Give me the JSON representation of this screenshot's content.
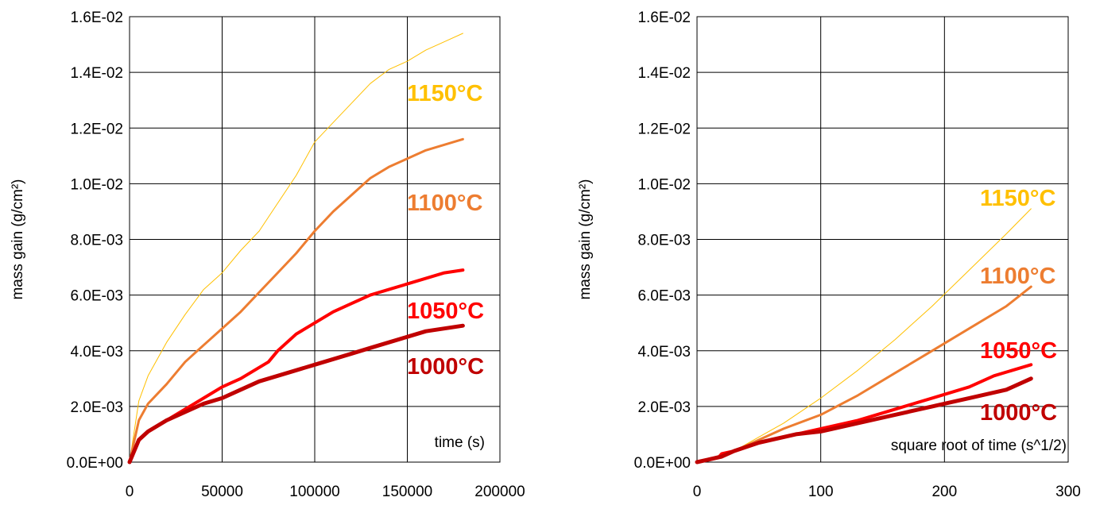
{
  "chart_data": [
    {
      "type": "line",
      "xlabel": "time (s)",
      "ylabel": "mass gain (g/cm²)",
      "xlim": [
        0,
        200000
      ],
      "ylim": [
        0,
        0.016
      ],
      "x_ticks": [
        "0",
        "50000",
        "100000",
        "150000",
        "200000"
      ],
      "y_ticks": [
        "0.0E+00",
        "2.0E-03",
        "4.0E-03",
        "6.0E-03",
        "8.0E-03",
        "1.0E-02",
        "1.2E-02",
        "1.4E-02",
        "1.6E-02"
      ],
      "grid": true,
      "series": [
        {
          "name": "1150°C",
          "label": "1150°C",
          "color": "#FFC000",
          "width": 1,
          "points": [
            [
              0,
              0
            ],
            [
              5000,
              0.0022
            ],
            [
              10000,
              0.0031
            ],
            [
              20000,
              0.0043
            ],
            [
              30000,
              0.0053
            ],
            [
              40000,
              0.0062
            ],
            [
              50000,
              0.0068
            ],
            [
              60000,
              0.0076
            ],
            [
              70000,
              0.0083
            ],
            [
              80000,
              0.0093
            ],
            [
              90000,
              0.0103
            ],
            [
              100000,
              0.0115
            ],
            [
              110000,
              0.0122
            ],
            [
              120000,
              0.0129
            ],
            [
              130000,
              0.0136
            ],
            [
              140000,
              0.0141
            ],
            [
              150000,
              0.0144
            ],
            [
              160000,
              0.0148
            ],
            [
              170000,
              0.0151
            ],
            [
              180000,
              0.0154
            ]
          ]
        },
        {
          "name": "1100°C",
          "label": "1100°C",
          "color": "#ED7D31",
          "width": 3,
          "points": [
            [
              0,
              0
            ],
            [
              5000,
              0.0015
            ],
            [
              10000,
              0.0021
            ],
            [
              20000,
              0.0028
            ],
            [
              30000,
              0.0036
            ],
            [
              40000,
              0.0042
            ],
            [
              50000,
              0.0048
            ],
            [
              60000,
              0.0054
            ],
            [
              70000,
              0.0061
            ],
            [
              80000,
              0.0068
            ],
            [
              90000,
              0.0075
            ],
            [
              100000,
              0.0083
            ],
            [
              110000,
              0.009
            ],
            [
              120000,
              0.0096
            ],
            [
              130000,
              0.0102
            ],
            [
              140000,
              0.0106
            ],
            [
              150000,
              0.0109
            ],
            [
              160000,
              0.0112
            ],
            [
              170000,
              0.0114
            ],
            [
              180000,
              0.0116
            ]
          ]
        },
        {
          "name": "1050°C",
          "label": "1050°C",
          "color": "#FF0000",
          "width": 4,
          "points": [
            [
              0,
              0
            ],
            [
              5000,
              0.0008
            ],
            [
              10000,
              0.0011
            ],
            [
              20000,
              0.0015
            ],
            [
              30000,
              0.0019
            ],
            [
              40000,
              0.0023
            ],
            [
              50000,
              0.0027
            ],
            [
              60000,
              0.003
            ],
            [
              70000,
              0.0034
            ],
            [
              75000,
              0.0036
            ],
            [
              80000,
              0.004
            ],
            [
              90000,
              0.0046
            ],
            [
              100000,
              0.005
            ],
            [
              110000,
              0.0054
            ],
            [
              120000,
              0.0057
            ],
            [
              130000,
              0.006
            ],
            [
              140000,
              0.0062
            ],
            [
              150000,
              0.0064
            ],
            [
              160000,
              0.0066
            ],
            [
              170000,
              0.0068
            ],
            [
              180000,
              0.0069
            ]
          ]
        },
        {
          "name": "1000°C",
          "label": "1000°C",
          "color": "#C00000",
          "width": 5,
          "points": [
            [
              0,
              0
            ],
            [
              5000,
              0.0008
            ],
            [
              10000,
              0.0011
            ],
            [
              20000,
              0.0015
            ],
            [
              30000,
              0.0018
            ],
            [
              40000,
              0.0021
            ],
            [
              50000,
              0.0023
            ],
            [
              60000,
              0.0026
            ],
            [
              70000,
              0.0029
            ],
            [
              80000,
              0.0031
            ],
            [
              90000,
              0.0033
            ],
            [
              100000,
              0.0035
            ],
            [
              110000,
              0.0037
            ],
            [
              120000,
              0.0039
            ],
            [
              130000,
              0.0041
            ],
            [
              140000,
              0.0043
            ],
            [
              150000,
              0.0045
            ],
            [
              160000,
              0.0047
            ],
            [
              170000,
              0.0048
            ],
            [
              180000,
              0.0049
            ]
          ]
        }
      ]
    },
    {
      "type": "line",
      "xlabel": "square root of time (s^1/2)",
      "ylabel": "mass gain (g/cm²)",
      "xlim": [
        0,
        300
      ],
      "ylim": [
        0,
        0.016
      ],
      "x_ticks": [
        "0",
        "100",
        "200",
        "300"
      ],
      "y_ticks": [
        "0.0E+00",
        "2.0E-03",
        "4.0E-03",
        "6.0E-03",
        "8.0E-03",
        "1.0E-02",
        "1.2E-02",
        "1.4E-02",
        "1.6E-02"
      ],
      "grid": true,
      "series": [
        {
          "name": "1150°C",
          "label": "1150°C",
          "color": "#FFC000",
          "width": 1,
          "points": [
            [
              0,
              0
            ],
            [
              10,
              0.0001
            ],
            [
              20,
              0.0002
            ],
            [
              30,
              0.0004
            ],
            [
              50,
              0.0009
            ],
            [
              70,
              0.0014
            ],
            [
              100,
              0.0023
            ],
            [
              130,
              0.0033
            ],
            [
              160,
              0.0044
            ],
            [
              190,
              0.0056
            ],
            [
              220,
              0.0069
            ],
            [
              250,
              0.0082
            ],
            [
              270,
              0.0091
            ]
          ]
        },
        {
          "name": "1100°C",
          "label": "1100°C",
          "color": "#ED7D31",
          "width": 3,
          "points": [
            [
              0,
              0
            ],
            [
              10,
              0.0001
            ],
            [
              20,
              0.0002
            ],
            [
              30,
              0.0004
            ],
            [
              50,
              0.0008
            ],
            [
              70,
              0.0012
            ],
            [
              100,
              0.0017
            ],
            [
              130,
              0.0024
            ],
            [
              160,
              0.0032
            ],
            [
              190,
              0.004
            ],
            [
              220,
              0.0048
            ],
            [
              250,
              0.0056
            ],
            [
              270,
              0.0063
            ]
          ]
        },
        {
          "name": "1050°C",
          "label": "1050°C",
          "color": "#FF0000",
          "width": 4,
          "points": [
            [
              0,
              0
            ],
            [
              10,
              0.0001
            ],
            [
              18,
              0.0002
            ],
            [
              20,
              0.0003
            ],
            [
              30,
              0.0004
            ],
            [
              50,
              0.0007
            ],
            [
              80,
              0.001
            ],
            [
              100,
              0.0012
            ],
            [
              130,
              0.0015
            ],
            [
              160,
              0.0019
            ],
            [
              190,
              0.0023
            ],
            [
              220,
              0.0027
            ],
            [
              240,
              0.0031
            ],
            [
              270,
              0.0035
            ]
          ]
        },
        {
          "name": "1000°C",
          "label": "1000°C",
          "color": "#C00000",
          "width": 5,
          "points": [
            [
              0,
              0
            ],
            [
              10,
              0.0001
            ],
            [
              20,
              0.0002
            ],
            [
              30,
              0.0004
            ],
            [
              50,
              0.0007
            ],
            [
              80,
              0.001
            ],
            [
              100,
              0.0011
            ],
            [
              130,
              0.0014
            ],
            [
              160,
              0.0017
            ],
            [
              190,
              0.002
            ],
            [
              220,
              0.0023
            ],
            [
              250,
              0.0026
            ],
            [
              270,
              0.003
            ]
          ]
        }
      ]
    }
  ]
}
